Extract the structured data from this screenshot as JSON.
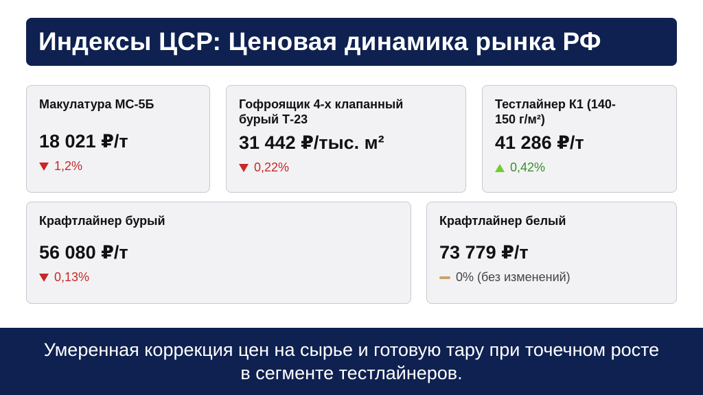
{
  "header": {
    "title": "Индексы ЦСР: Ценовая динамика рынка РФ"
  },
  "cards": [
    {
      "title": "Макулатура МС-5Б",
      "value": "18 021 ₽/т",
      "change": "1,2%",
      "direction": "down"
    },
    {
      "title": "Гофроящик 4-х клапанный бурый Т-23",
      "value": "31 442 ₽/тыс. м²",
      "change": "0,22%",
      "direction": "down"
    },
    {
      "title": "Тестлайнер К1 (140-150 г/м²)",
      "value": "41 286 ₽/т",
      "change": "0,42%",
      "direction": "up"
    },
    {
      "title": "Крафтлайнер бурый",
      "value": "56 080 ₽/т",
      "change": "0,13%",
      "direction": "down"
    },
    {
      "title": "Крафтлайнер белый",
      "value": "73 779 ₽/т",
      "change": "0% (без изменений)",
      "direction": "flat"
    }
  ],
  "colors": {
    "navy": "#0e2150",
    "down": "#c62828",
    "up": "#6fcf2c",
    "flat": "#c9a46a"
  },
  "footer": {
    "text": "Умеренная коррекция цен на сырье и готовую тару при точечном росте в сегменте тестлайнеров."
  }
}
